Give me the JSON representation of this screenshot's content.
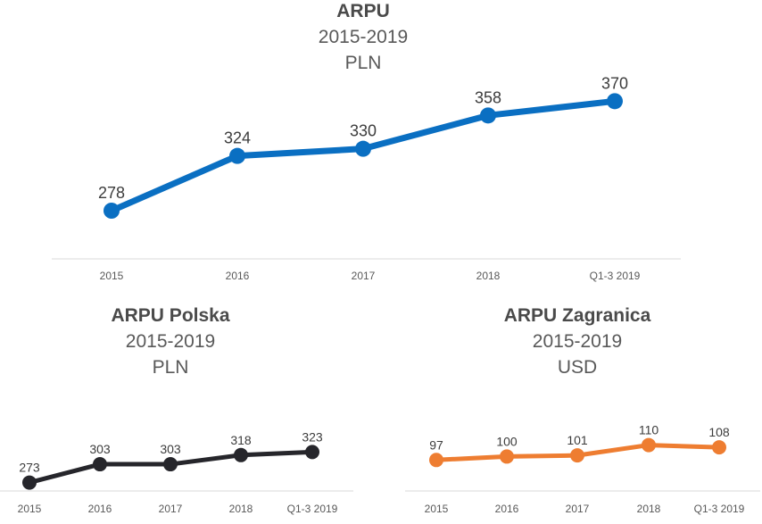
{
  "chart_data": [
    {
      "type": "line",
      "title": "ARPU",
      "subtitle": "2015-2019",
      "unit": "PLN",
      "categories": [
        "2015",
        "2016",
        "2017",
        "2018",
        "Q1-3 2019"
      ],
      "values": [
        278,
        324,
        330,
        358,
        370
      ],
      "data_labels": [
        "278",
        "324",
        "330",
        "358",
        "370"
      ],
      "color": "#0a6fc2",
      "ylim": [
        230,
        410
      ]
    },
    {
      "type": "line",
      "title": "ARPU Polska",
      "subtitle": "2015-2019",
      "unit": "PLN",
      "categories": [
        "2015",
        "2016",
        "2017",
        "2018",
        "Q1-3 2019"
      ],
      "values": [
        273,
        303,
        303,
        318,
        323
      ],
      "data_labels": [
        "273",
        "303",
        "303",
        "318",
        "323"
      ],
      "color": "#26262b",
      "ylim": [
        230,
        420
      ]
    },
    {
      "type": "line",
      "title": "ARPU Zagranica",
      "subtitle": "2015-2019",
      "unit": "USD",
      "categories": [
        "2015",
        "2016",
        "2017",
        "2018",
        "Q1-3 2019"
      ],
      "values": [
        97,
        100,
        101,
        110,
        108
      ],
      "data_labels": [
        "97",
        "100",
        "101",
        "110",
        "108"
      ],
      "color": "#ee7d31",
      "ylim": [
        70,
        140
      ]
    }
  ]
}
